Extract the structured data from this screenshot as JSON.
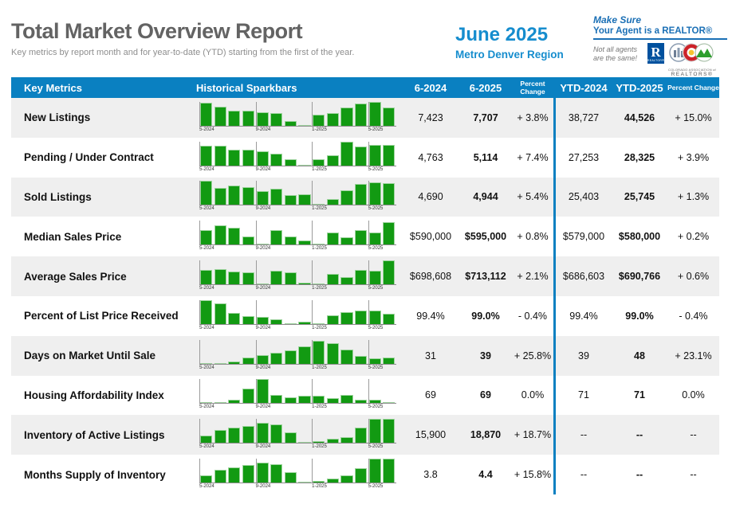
{
  "header": {
    "title": "Total Market Overview Report",
    "subtitle": "Key metrics by report month and for year-to-date (YTD) starting from the first of the year.",
    "report_month": "June 2025",
    "region": "Metro Denver Region",
    "realtor_banner": {
      "line1": "Make Sure",
      "line2": "Your Agent is a REALTOR®",
      "tagline": "Not all agents are the same!",
      "nar_logo_letter": "R",
      "nar_logo_caption": "REALTOR®",
      "car_caption_line1": "COLORADO ASSOCIATION of",
      "car_caption_line2": "REALTORS®"
    }
  },
  "colors": {
    "accent_blue": "#0a80c1",
    "bar_green": "#129a12"
  },
  "table": {
    "columns": {
      "key_metrics": "Key Metrics",
      "sparkbars": "Historical Sparkbars",
      "m2024": "6-2024",
      "m2025": "6-2025",
      "mchange": "Percent Change",
      "ytd2024": "YTD-2024",
      "ytd2025": "YTD-2025",
      "ytdchange": "Percent Change"
    },
    "axis_labels": [
      "5-2024",
      "9-2024",
      "1-2025",
      "5-2025"
    ],
    "rows": [
      {
        "metric": "New Listings",
        "bars": [
          0.95,
          0.8,
          0.63,
          0.62,
          0.58,
          0.52,
          0.2,
          0.04,
          0.45,
          0.53,
          0.78,
          0.92,
          1.0,
          0.75
        ],
        "m2024": "7,423",
        "m2025": "7,707",
        "mchange": "+ 3.8%",
        "ytd2024": "38,727",
        "ytd2025": "44,526",
        "ytdchange": "+ 15.0%"
      },
      {
        "metric": "Pending / Under Contract",
        "bars": [
          0.82,
          0.82,
          0.65,
          0.65,
          0.6,
          0.5,
          0.25,
          0.04,
          0.25,
          0.42,
          1.0,
          0.8,
          0.85,
          0.85
        ],
        "m2024": "4,763",
        "m2025": "5,114",
        "mchange": "+ 7.4%",
        "ytd2024": "27,253",
        "ytd2025": "28,325",
        "ytdchange": "+ 3.9%"
      },
      {
        "metric": "Sold Listings",
        "bars": [
          1.0,
          0.72,
          0.8,
          0.75,
          0.58,
          0.68,
          0.42,
          0.45,
          0.06,
          0.25,
          0.62,
          0.88,
          0.95,
          0.92
        ],
        "m2024": "4,690",
        "m2025": "4,944",
        "mchange": "+ 5.4%",
        "ytd2024": "25,403",
        "ytd2025": "25,745",
        "ytdchange": "+ 1.3%"
      },
      {
        "metric": "Median Sales Price",
        "bars": [
          0.62,
          0.8,
          0.72,
          0.35,
          0.03,
          0.62,
          0.35,
          0.18,
          0.03,
          0.52,
          0.32,
          0.6,
          0.5,
          0.95
        ],
        "m2024": "$590,000",
        "m2025": "$595,000",
        "mchange": "+ 0.8%",
        "ytd2024": "$579,000",
        "ytd2025": "$580,000",
        "ytdchange": "+ 0.2%"
      },
      {
        "metric": "Average Sales Price",
        "bars": [
          0.6,
          0.65,
          0.55,
          0.5,
          0.05,
          0.58,
          0.5,
          0.08,
          0.04,
          0.42,
          0.3,
          0.6,
          0.58,
          1.0
        ],
        "m2024": "$698,608",
        "m2025": "$713,112",
        "mchange": "+ 2.1%",
        "ytd2024": "$686,603",
        "ytd2025": "$690,766",
        "ytdchange": "+ 0.6%"
      },
      {
        "metric": "Percent of List Price Received",
        "bars": [
          1.0,
          0.85,
          0.45,
          0.32,
          0.3,
          0.18,
          0.03,
          0.1,
          0.03,
          0.35,
          0.5,
          0.55,
          0.55,
          0.42
        ],
        "m2024": "99.4%",
        "m2025": "99.0%",
        "mchange": "- 0.4%",
        "ytd2024": "99.4%",
        "ytd2025": "99.0%",
        "ytdchange": "- 0.4%"
      },
      {
        "metric": "Days on Market Until Sale",
        "bars": [
          0.02,
          0.02,
          0.1,
          0.25,
          0.35,
          0.45,
          0.55,
          0.72,
          0.95,
          0.85,
          0.6,
          0.32,
          0.22,
          0.25
        ],
        "m2024": "31",
        "m2025": "39",
        "mchange": "+ 25.8%",
        "ytd2024": "39",
        "ytd2025": "48",
        "ytdchange": "+ 23.1%"
      },
      {
        "metric": "Housing Affordability Index",
        "bars": [
          0.04,
          0.03,
          0.15,
          0.6,
          1.0,
          0.35,
          0.25,
          0.3,
          0.3,
          0.2,
          0.35,
          0.15,
          0.15,
          0.03
        ],
        "m2024": "69",
        "m2025": "69",
        "mchange": "0.0%",
        "ytd2024": "71",
        "ytd2025": "71",
        "ytdchange": "0.0%"
      },
      {
        "metric": "Inventory of Active Listings",
        "bars": [
          0.3,
          0.55,
          0.65,
          0.72,
          0.85,
          0.78,
          0.45,
          0.04,
          0.08,
          0.18,
          0.25,
          0.65,
          1.0,
          1.0
        ],
        "m2024": "15,900",
        "m2025": "18,870",
        "mchange": "+ 18.7%",
        "ytd2024": "--",
        "ytd2025": "--",
        "ytdchange": "--"
      },
      {
        "metric": "Months Supply of Inventory",
        "bars": [
          0.3,
          0.55,
          0.65,
          0.75,
          0.85,
          0.78,
          0.45,
          0.04,
          0.08,
          0.18,
          0.3,
          0.6,
          1.0,
          1.0
        ],
        "m2024": "3.8",
        "m2025": "4.4",
        "mchange": "+ 15.8%",
        "ytd2024": "--",
        "ytd2025": "--",
        "ytdchange": "--"
      }
    ]
  }
}
